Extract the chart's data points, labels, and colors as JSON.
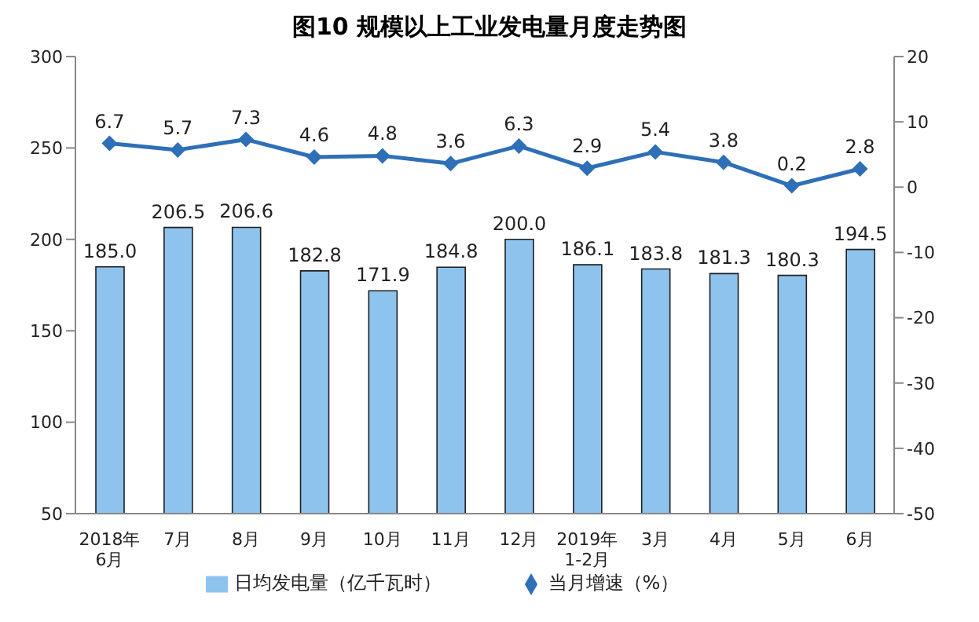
{
  "chart_data": {
    "type": "bar",
    "title": "图10  规模以上工业发电量月度走势图",
    "categories": [
      "2018年\n6月",
      "7月",
      "8月",
      "9月",
      "10月",
      "11月",
      "12月",
      "2019年\n1-2月",
      "3月",
      "4月",
      "5月",
      "6月"
    ],
    "series": [
      {
        "name": "日均发电量（亿千瓦时）",
        "color": "#8ec3ee",
        "values": [
          185.0,
          206.5,
          206.6,
          182.8,
          171.9,
          184.8,
          200.0,
          186.1,
          183.8,
          181.3,
          180.3,
          194.5
        ],
        "value_labels": [
          "185.0",
          "206.5",
          "206.6",
          "182.8",
          "171.9",
          "184.8",
          "200.0",
          "186.1",
          "183.8",
          "181.3",
          "180.3",
          "194.5"
        ]
      },
      {
        "name": "当月增速（%）",
        "type": "line",
        "axis": "y2",
        "color": "#2e6fb7",
        "marker": "diamond",
        "values": [
          6.7,
          5.7,
          7.3,
          4.6,
          4.8,
          3.6,
          6.3,
          2.9,
          5.4,
          3.8,
          0.2,
          2.8
        ]
      }
    ],
    "ylim": [
      50,
      300
    ],
    "yticks": [
      50,
      100,
      150,
      200,
      250,
      300
    ],
    "y2lim": [
      -50,
      20
    ],
    "y2ticks": [
      -50,
      -40,
      -30,
      -20,
      -10,
      0,
      10,
      20
    ],
    "data_labels": true,
    "grid": false,
    "legend": "bottom"
  }
}
